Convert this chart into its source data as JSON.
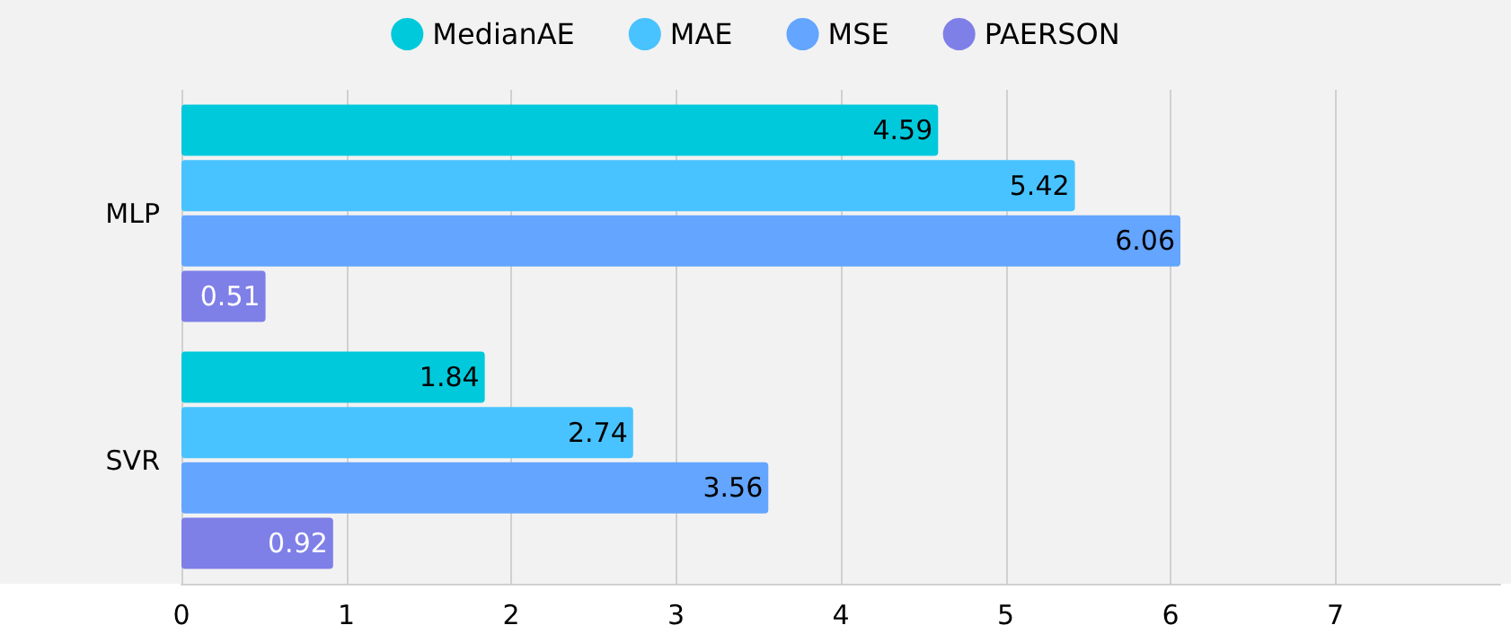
{
  "chart_data": {
    "type": "bar",
    "orientation": "horizontal",
    "categories": [
      "MLP",
      "SVR"
    ],
    "series": [
      {
        "name": "MedianAE",
        "color": "#00c9dc",
        "values": [
          4.59,
          1.84
        ]
      },
      {
        "name": "MAE",
        "color": "#48c3ff",
        "values": [
          5.42,
          2.74
        ]
      },
      {
        "name": "MSE",
        "color": "#63a5ff",
        "values": [
          6.06,
          3.56
        ]
      },
      {
        "name": "PAERSON",
        "color": "#7f7fe8",
        "values": [
          0.51,
          0.92
        ]
      }
    ],
    "xlim": [
      0,
      8
    ],
    "xticks": [
      0,
      1,
      2,
      3,
      4,
      5,
      6,
      7
    ],
    "grid": "x",
    "legend": "top",
    "data_labels": true
  }
}
